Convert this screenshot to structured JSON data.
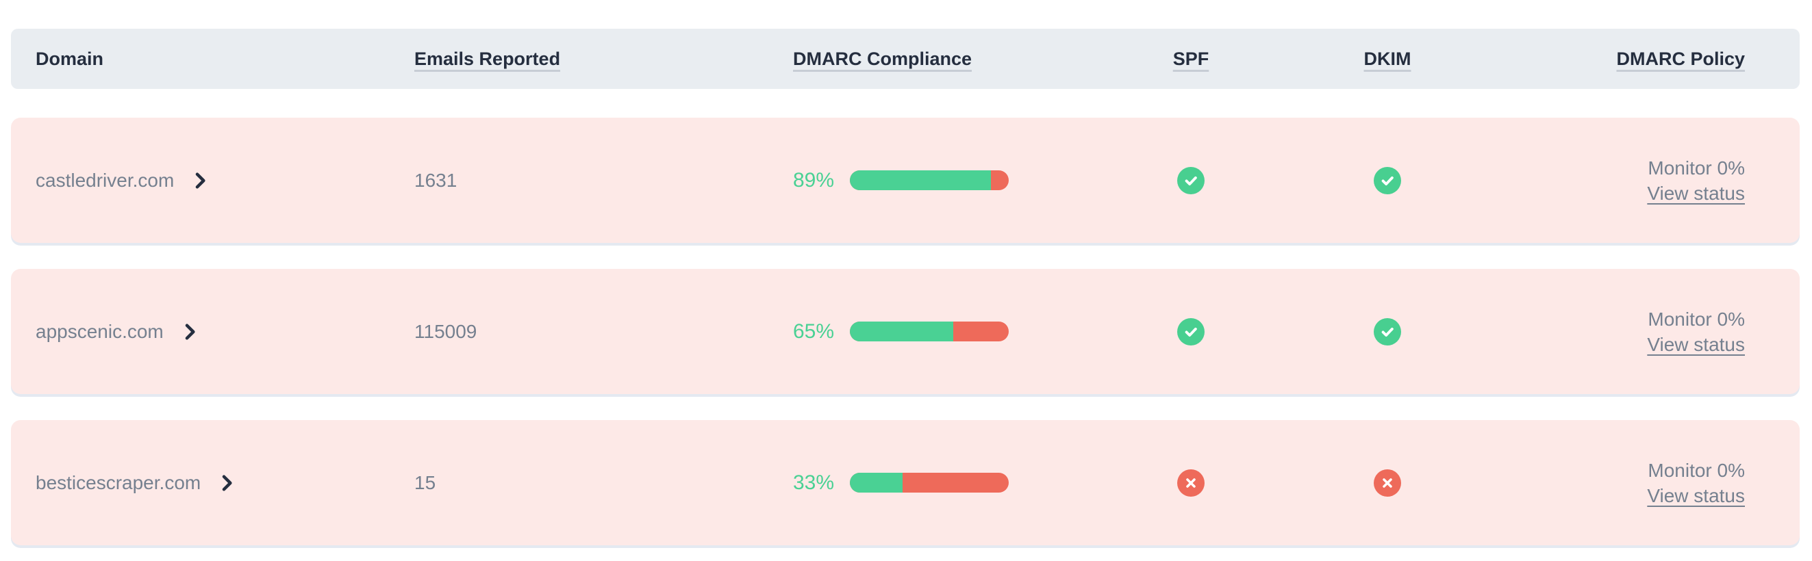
{
  "table": {
    "columns": [
      {
        "label": "Domain",
        "underlined": false
      },
      {
        "label": "Emails Reported",
        "underlined": true
      },
      {
        "label": "DMARC Compliance",
        "underlined": true
      },
      {
        "label": "SPF",
        "underlined": true
      },
      {
        "label": "DKIM",
        "underlined": true
      },
      {
        "label": "DMARC Policy",
        "underlined": true
      }
    ],
    "rows": [
      {
        "domain": "castledriver.com",
        "emails_reported": "1631",
        "compliance_label": "89%",
        "compliance_pct": 89,
        "spf": "pass",
        "dkim": "pass",
        "policy": "Monitor 0%",
        "policy_link": "View status"
      },
      {
        "domain": "appscenic.com",
        "emails_reported": "115009",
        "compliance_label": "65%",
        "compliance_pct": 65,
        "spf": "pass",
        "dkim": "pass",
        "policy": "Monitor 0%",
        "policy_link": "View status"
      },
      {
        "domain": "besticescraper.com",
        "emails_reported": "15",
        "compliance_label": "33%",
        "compliance_pct": 33,
        "spf": "fail",
        "dkim": "fail",
        "policy": "Monitor 0%",
        "policy_link": "View status"
      }
    ]
  },
  "colors": {
    "header_bg": "#e9edf1",
    "header_text": "#252e3f",
    "row_bg": "#fde9e7",
    "row_border": "#e4e9f1",
    "body_text": "#75808f",
    "pass_green": "#48cf90",
    "bar_green": "#4ad194",
    "fail_red": "#ee6a5a"
  }
}
